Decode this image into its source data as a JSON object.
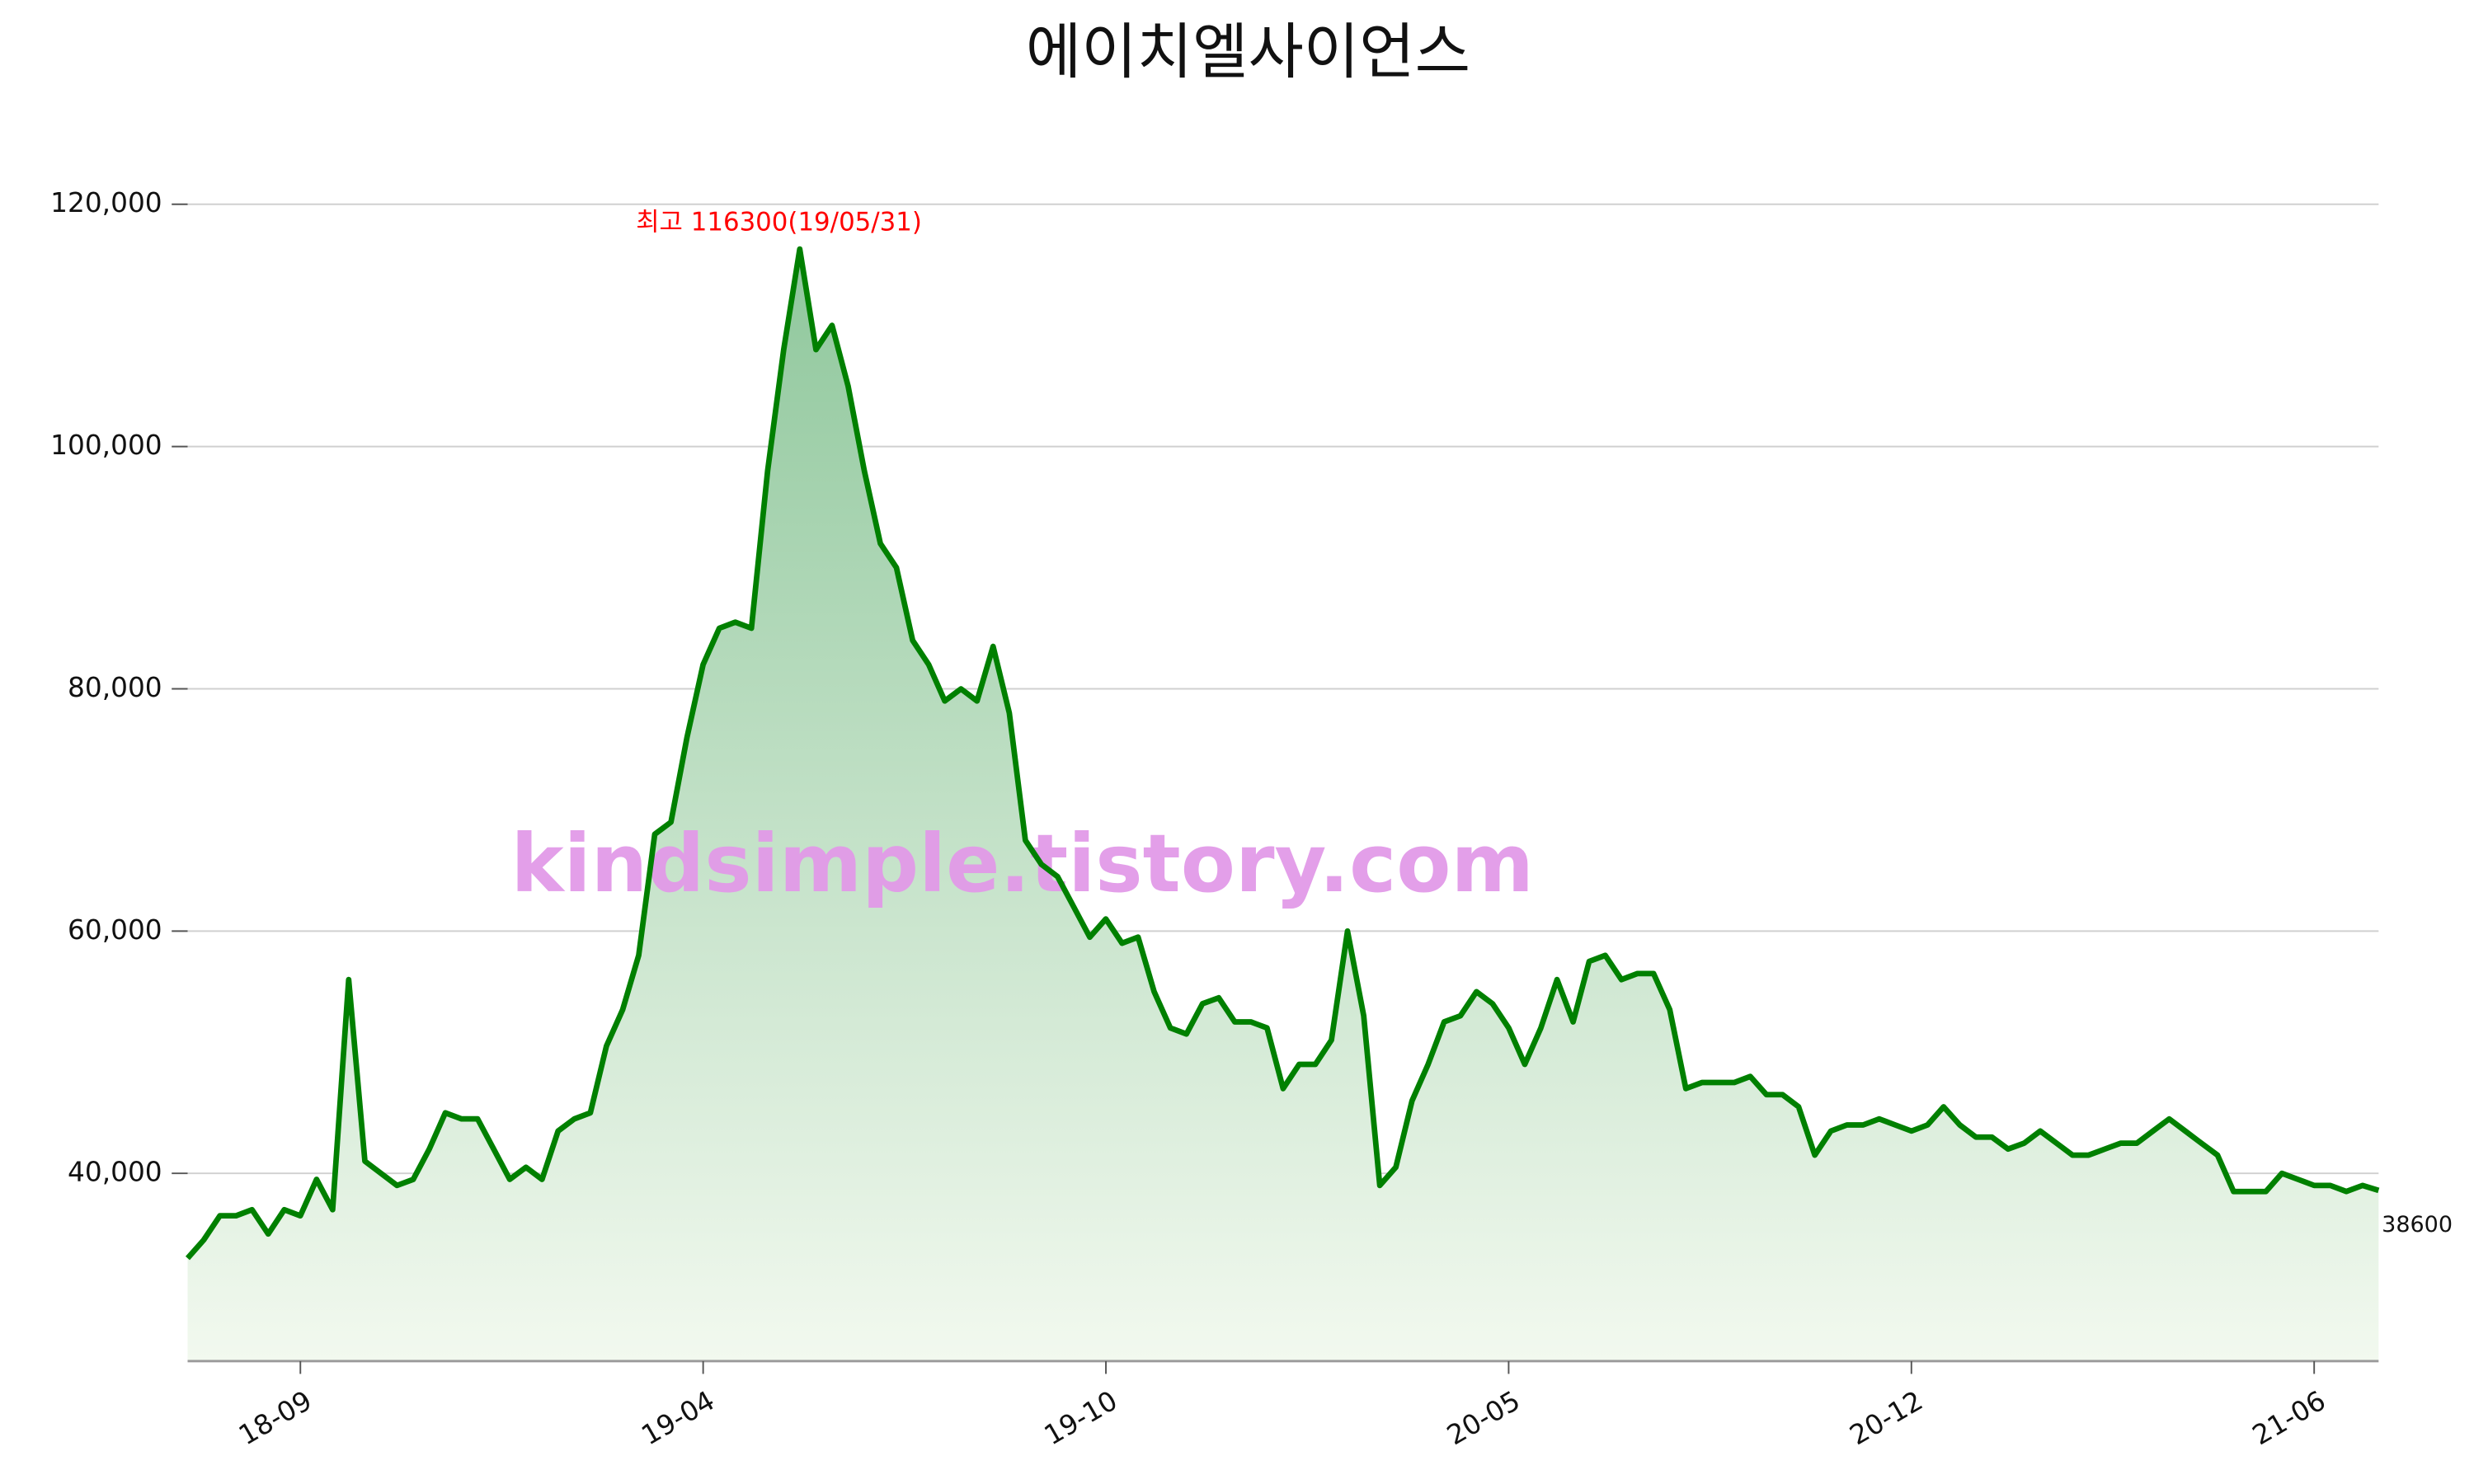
{
  "chart_data": {
    "type": "area-line",
    "title": "에이치엘사이언스",
    "watermark": "kindsimple.tistory.com",
    "annotation": "최고 116300(19/05/31)",
    "annotation_color": "#ff0000",
    "color": "#008000",
    "fill_top": "#8fc79c",
    "fill_bottom": "#f2f9ef",
    "grid": true,
    "values": [
      33000,
      34500,
      36500,
      36500,
      37000,
      35000,
      37000,
      36500,
      39500,
      37000,
      56000,
      41000,
      40000,
      39000,
      39500,
      42000,
      45000,
      44500,
      44500,
      42000,
      39500,
      40500,
      39500,
      43500,
      44500,
      45000,
      50500,
      53500,
      58000,
      68000,
      69000,
      76000,
      82000,
      85000,
      85500,
      85000,
      98000,
      108000,
      116300,
      108000,
      110000,
      105000,
      98000,
      92000,
      90000,
      84000,
      82000,
      79000,
      80000,
      79000,
      83500,
      78000,
      67500,
      65500,
      64500,
      62000,
      59500,
      61000,
      59000,
      59500,
      55000,
      52000,
      51500,
      54000,
      54500,
      52500,
      52500,
      52000,
      47000,
      49000,
      49000,
      51000,
      60000,
      53000,
      39000,
      40500,
      46000,
      49000,
      52500,
      53000,
      55000,
      54000,
      52000,
      49000,
      52000,
      56000,
      52500,
      57500,
      58000,
      56000,
      56500,
      56500,
      53500,
      47000,
      47500,
      47500,
      47500,
      48000,
      46500,
      46500,
      45500,
      41500,
      43500,
      44000,
      44000,
      44500,
      44000,
      43500,
      44000,
      45500,
      44000,
      43000,
      43000,
      42000,
      42500,
      43500,
      42500,
      41500,
      41500,
      42000,
      42500,
      42500,
      43500,
      44500,
      43500,
      42500,
      41500,
      38500,
      38500,
      38500,
      40000,
      39500,
      39000,
      39000,
      38500,
      39000,
      38600
    ],
    "xlim": [
      0,
      136
    ],
    "xticks": [
      {
        "value": 7,
        "label": "18-09"
      },
      {
        "value": 32,
        "label": "19-04"
      },
      {
        "value": 57,
        "label": "19-10"
      },
      {
        "value": 82,
        "label": "20-05"
      },
      {
        "value": 107,
        "label": "20-12"
      },
      {
        "value": 132,
        "label": "21-06"
      }
    ],
    "ylim": [
      24500,
      120000
    ],
    "yticks": [
      {
        "value": 40000,
        "label": "40,000"
      },
      {
        "value": 60000,
        "label": "60,000"
      },
      {
        "value": 80000,
        "label": "80,000"
      },
      {
        "value": 100000,
        "label": "100,000"
      },
      {
        "value": 120000,
        "label": "120,000"
      }
    ]
  }
}
